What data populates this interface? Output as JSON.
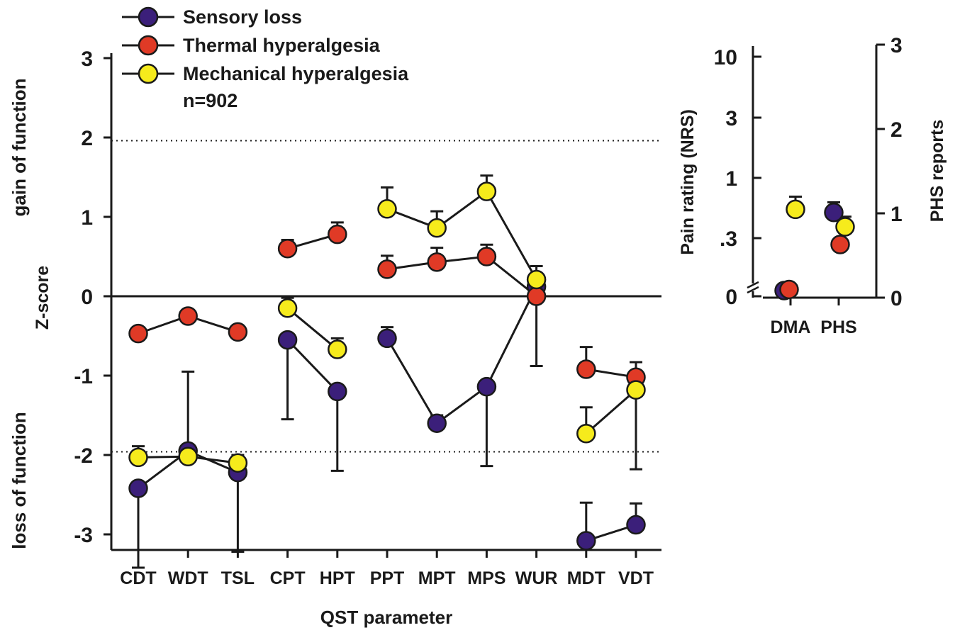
{
  "colors": {
    "sensory": "#3b1f7a",
    "thermal": "#e03a26",
    "mechanical": "#f6eb1c",
    "ink": "#1a1a1a"
  },
  "chart_data": [
    {
      "type": "line",
      "xlabel": "QST parameter",
      "ylabel": "Z-score",
      "ylabel_upper": "gain of function",
      "ylabel_lower": "loss of function",
      "ylim": [
        -3.2,
        3.2
      ],
      "yticks": [
        3,
        2,
        1,
        0,
        -1,
        -2,
        -3
      ],
      "ytick_labels": [
        "3",
        "2",
        "1",
        "0",
        "-1",
        "-2",
        "-3"
      ],
      "reference_lines": [
        1.96,
        -1.96
      ],
      "categories": [
        "CDT",
        "WDT",
        "TSL",
        "CPT",
        "HPT",
        "PPT",
        "MPT",
        "MPS",
        "WUR",
        "MDT",
        "VDT"
      ],
      "legend": {
        "items": [
          "Sensory loss",
          "Thermal hyperalgesia",
          "Mechanical hyperalgesia"
        ],
        "note": "n=902"
      },
      "series": [
        {
          "name": "Sensory loss",
          "color_key": "sensory",
          "segments": [
            [
              "CDT",
              "WDT",
              "TSL"
            ],
            [
              "CPT",
              "HPT"
            ],
            [
              "PPT",
              "MPT",
              "MPS",
              "WUR"
            ],
            [
              "MDT",
              "VDT"
            ]
          ],
          "values": {
            "CDT": -2.42,
            "WDT": -1.95,
            "TSL": -2.22,
            "CPT": -0.55,
            "HPT": -1.2,
            "PPT": -0.53,
            "MPT": -1.6,
            "MPS": -1.14,
            "WUR": 0.12,
            "MDT": -3.08,
            "VDT": -2.88
          },
          "errors": {
            "CDT": -1,
            "WDT": 1,
            "TSL": -1,
            "CPT": -1,
            "HPT": -1,
            "PPT": 0.14,
            "MPT": 0.1,
            "MPS": -1,
            "WUR": -1,
            "MDT": 0.48,
            "VDT": 0.27
          }
        },
        {
          "name": "Thermal hyperalgesia",
          "color_key": "thermal",
          "segments": [
            [
              "CDT",
              "WDT",
              "TSL"
            ],
            [
              "CPT",
              "HPT"
            ],
            [
              "PPT",
              "MPT",
              "MPS",
              "WUR"
            ],
            [
              "MDT",
              "VDT"
            ]
          ],
          "values": {
            "CDT": -0.47,
            "WDT": -0.25,
            "TSL": -0.45,
            "CPT": 0.6,
            "HPT": 0.78,
            "PPT": 0.34,
            "MPT": 0.43,
            "MPS": 0.5,
            "WUR": 0.0,
            "MDT": -0.92,
            "VDT": -1.02
          },
          "errors": {
            "CDT": 0.08,
            "WDT": 0.08,
            "TSL": 0.07,
            "CPT": 0.11,
            "HPT": 0.15,
            "PPT": 0.17,
            "MPT": 0.18,
            "MPS": 0.15,
            "WUR": 0,
            "MDT": 0.28,
            "VDT": 0.19
          }
        },
        {
          "name": "Mechanical hyperalgesia",
          "color_key": "mechanical",
          "segments": [
            [
              "CDT",
              "WDT",
              "TSL"
            ],
            [
              "CPT",
              "HPT"
            ],
            [
              "PPT",
              "MPT",
              "MPS",
              "WUR"
            ],
            [
              "MDT",
              "VDT"
            ]
          ],
          "values": {
            "CDT": -2.03,
            "WDT": -2.02,
            "TSL": -2.1,
            "CPT": -0.15,
            "HPT": -0.67,
            "PPT": 1.1,
            "MPT": 0.86,
            "MPS": 1.32,
            "WUR": 0.21,
            "MDT": -1.73,
            "VDT": -1.18
          },
          "errors": {
            "CDT": 0.14,
            "WDT": 0.07,
            "TSL": 0.1,
            "CPT": 0.13,
            "HPT": 0.14,
            "PPT": 0.27,
            "MPT": 0.21,
            "MPS": 0.2,
            "WUR": 0.17,
            "MDT": 0.33,
            "VDT": -1
          }
        }
      ]
    },
    {
      "type": "scatter",
      "categories": [
        "DMA",
        "PHS"
      ],
      "ylabel_left": "Pain rating (NRS)",
      "ylabel_right": "PHS reports",
      "y_left_scale": "log",
      "y_left_ticks": [
        "10",
        "3",
        "1",
        ".3",
        "0"
      ],
      "y_right_ticks": [
        "3",
        "2",
        "1",
        "0"
      ],
      "y_right_lim": [
        0,
        3
      ],
      "series": [
        {
          "name": "Sensory loss",
          "color_key": "sensory",
          "category": "DMA",
          "axis": "left",
          "value": 0.0
        },
        {
          "name": "Thermal hyperalgesia",
          "color_key": "thermal",
          "category": "DMA",
          "axis": "left",
          "value": 0.12
        },
        {
          "name": "Mechanical hyperalgesia",
          "color_key": "mechanical",
          "category": "DMA",
          "axis": "left",
          "value": 0.55,
          "error": 0.15
        },
        {
          "name": "Sensory loss",
          "color_key": "sensory",
          "category": "PHS",
          "axis": "right",
          "value": 1.01,
          "error": 0.12
        },
        {
          "name": "Thermal hyperalgesia",
          "color_key": "thermal",
          "category": "PHS",
          "axis": "right",
          "value": 0.63
        },
        {
          "name": "Mechanical hyperalgesia",
          "color_key": "mechanical",
          "category": "PHS",
          "axis": "right",
          "value": 0.84,
          "error": 0.12
        }
      ]
    }
  ]
}
